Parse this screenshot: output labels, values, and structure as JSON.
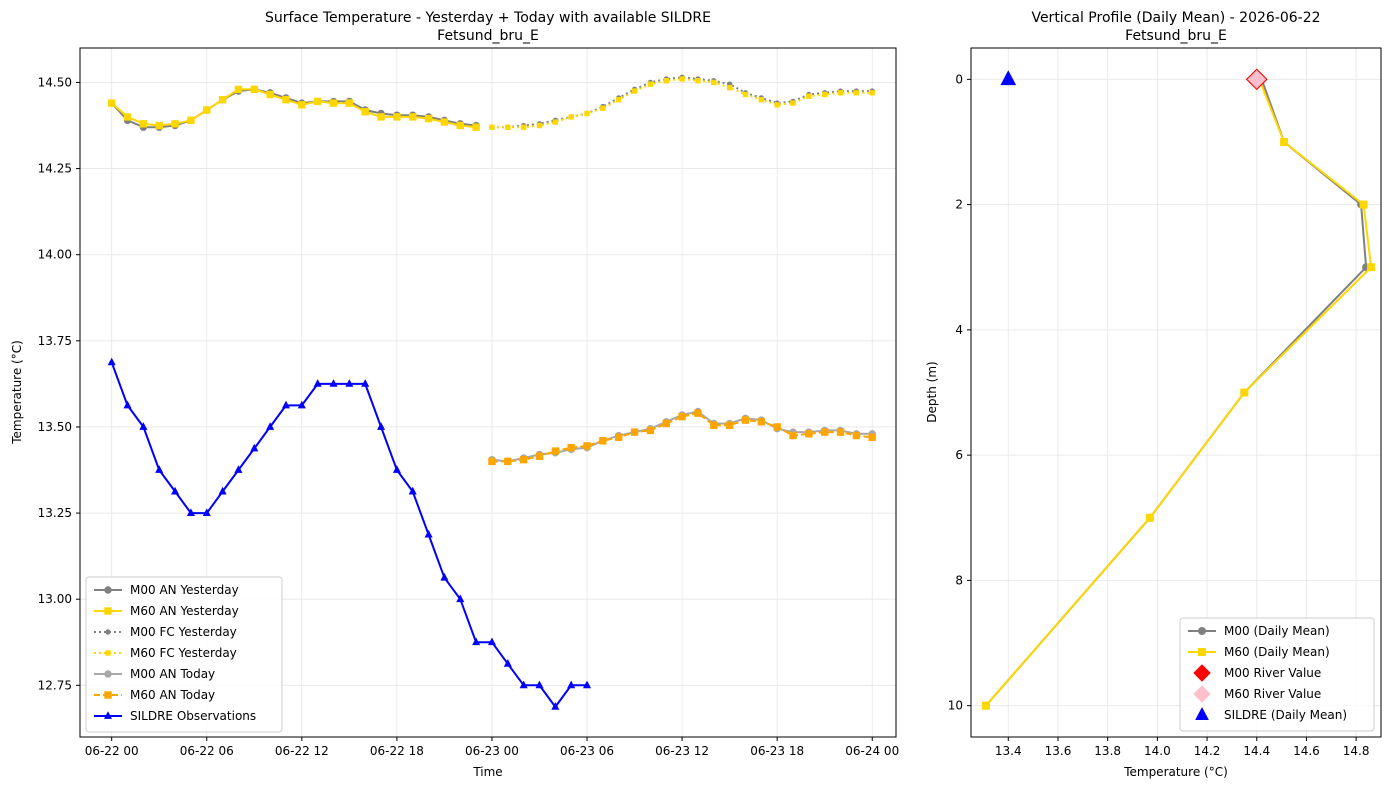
{
  "chart_data": [
    {
      "type": "line",
      "title": "Surface Temperature - Yesterday + Today with available SILDRE",
      "subtitle": "Fetsund_bru_E",
      "xlabel": "Time",
      "ylabel": "Temperature (°C)",
      "x_unit": "hours since 06-22 00:00",
      "xlim": [
        -2.0,
        49.5
      ],
      "ylim": [
        12.6,
        14.6
      ],
      "xticks": [
        {
          "value": 0,
          "label": "06-22 00"
        },
        {
          "value": 6,
          "label": "06-22 06"
        },
        {
          "value": 12,
          "label": "06-22 12"
        },
        {
          "value": 18,
          "label": "06-22 18"
        },
        {
          "value": 24,
          "label": "06-23 00"
        },
        {
          "value": 30,
          "label": "06-23 06"
        },
        {
          "value": 36,
          "label": "06-23 12"
        },
        {
          "value": 42,
          "label": "06-23 18"
        },
        {
          "value": 48,
          "label": "06-24 00"
        }
      ],
      "yticks": [
        12.75,
        13.0,
        13.25,
        13.5,
        13.75,
        14.0,
        14.25,
        14.5
      ],
      "ytick_labels": [
        "12.75",
        "13.00",
        "13.25",
        "13.50",
        "13.75",
        "14.00",
        "14.25",
        "14.50"
      ],
      "grid": true,
      "legend_position": "lower-left",
      "series": [
        {
          "name": "M00 AN Yesterday",
          "color": "#808080",
          "marker": "circle",
          "dash": "solid",
          "x": [
            0,
            1,
            2,
            3,
            4,
            5,
            6,
            7,
            8,
            9,
            10,
            11,
            12,
            13,
            14,
            15,
            16,
            17,
            18,
            19,
            20,
            21,
            22,
            23
          ],
          "y": [
            14.44,
            14.39,
            14.37,
            14.37,
            14.375,
            14.39,
            14.42,
            14.45,
            14.475,
            14.48,
            14.47,
            14.455,
            14.44,
            14.445,
            14.445,
            14.445,
            14.42,
            14.41,
            14.405,
            14.405,
            14.4,
            14.39,
            14.38,
            14.375
          ]
        },
        {
          "name": "M60 AN Yesterday",
          "color": "#FFD700",
          "marker": "square",
          "dash": "solid",
          "x": [
            0,
            1,
            2,
            3,
            4,
            5,
            6,
            7,
            8,
            9,
            10,
            11,
            12,
            13,
            14,
            15,
            16,
            17,
            18,
            19,
            20,
            21,
            22,
            23
          ],
          "y": [
            14.44,
            14.4,
            14.38,
            14.375,
            14.38,
            14.39,
            14.42,
            14.45,
            14.48,
            14.48,
            14.465,
            14.45,
            14.435,
            14.445,
            14.44,
            14.44,
            14.415,
            14.4,
            14.4,
            14.4,
            14.395,
            14.385,
            14.375,
            14.37
          ]
        },
        {
          "name": "M00 FC Yesterday",
          "color": "#808080",
          "marker": "circle",
          "dash": "dotted",
          "x": [
            24,
            25,
            26,
            27,
            28,
            29,
            30,
            31,
            32,
            33,
            34,
            35,
            36,
            37,
            38,
            39,
            40,
            41,
            42,
            43,
            44,
            45,
            46,
            47,
            48
          ],
          "y": [
            14.37,
            14.37,
            14.375,
            14.38,
            14.39,
            14.4,
            14.41,
            14.43,
            14.455,
            14.48,
            14.5,
            14.51,
            14.515,
            14.51,
            14.505,
            14.495,
            14.47,
            14.455,
            14.44,
            14.445,
            14.465,
            14.47,
            14.475,
            14.475,
            14.475
          ]
        },
        {
          "name": "M60 FC Yesterday",
          "color": "#FFD700",
          "marker": "square",
          "dash": "dotted",
          "x": [
            24,
            25,
            26,
            27,
            28,
            29,
            30,
            31,
            32,
            33,
            34,
            35,
            36,
            37,
            38,
            39,
            40,
            41,
            42,
            43,
            44,
            45,
            46,
            47,
            48
          ],
          "y": [
            14.37,
            14.37,
            14.37,
            14.375,
            14.385,
            14.4,
            14.41,
            14.425,
            14.45,
            14.475,
            14.495,
            14.505,
            14.51,
            14.505,
            14.5,
            14.485,
            14.465,
            14.45,
            14.435,
            14.44,
            14.46,
            14.465,
            14.47,
            14.47,
            14.47
          ]
        },
        {
          "name": "M00 AN Today",
          "color": "#A9A9A9",
          "marker": "circle",
          "dash": "solid",
          "x": [
            24,
            25,
            26,
            27,
            28,
            29,
            30,
            31,
            32,
            33,
            34,
            35,
            36,
            37,
            38,
            39,
            40,
            41,
            42,
            43,
            44,
            45,
            46,
            47,
            48
          ],
          "y": [
            13.405,
            13.4,
            13.41,
            13.42,
            13.425,
            13.435,
            13.44,
            13.46,
            13.475,
            13.485,
            13.495,
            13.515,
            13.535,
            13.545,
            13.51,
            13.51,
            13.525,
            13.52,
            13.495,
            13.485,
            13.485,
            13.49,
            13.49,
            13.48,
            13.48
          ]
        },
        {
          "name": "M60 AN Today",
          "color": "#FFA500",
          "marker": "square",
          "dash": "dashed",
          "x": [
            24,
            25,
            26,
            27,
            28,
            29,
            30,
            31,
            32,
            33,
            34,
            35,
            36,
            37,
            38,
            39,
            40,
            41,
            42,
            43,
            44,
            45,
            46,
            47,
            48
          ],
          "y": [
            13.4,
            13.4,
            13.405,
            13.415,
            13.43,
            13.44,
            13.445,
            13.46,
            13.47,
            13.485,
            13.49,
            13.51,
            13.53,
            13.54,
            13.505,
            13.505,
            13.52,
            13.515,
            13.5,
            13.475,
            13.48,
            13.485,
            13.485,
            13.475,
            13.47
          ]
        },
        {
          "name": "SILDRE Observations",
          "color": "#0000FF",
          "marker": "triangle",
          "dash": "solid",
          "x": [
            0,
            1,
            2,
            3,
            4,
            5,
            6,
            7,
            8,
            9,
            10,
            11,
            12,
            13,
            14,
            15,
            16,
            17,
            18,
            19,
            20,
            21,
            22,
            23,
            24,
            25,
            26,
            27,
            28,
            29,
            30
          ],
          "y": [
            13.6875,
            13.5625,
            13.5,
            13.375,
            13.3125,
            13.25,
            13.25,
            13.3125,
            13.375,
            13.4375,
            13.5,
            13.5625,
            13.5625,
            13.625,
            13.625,
            13.625,
            13.625,
            13.5,
            13.375,
            13.3125,
            13.1875,
            13.0625,
            13.0,
            12.875,
            12.875,
            12.8125,
            12.75,
            12.75,
            12.6875,
            12.75,
            12.75
          ]
        }
      ]
    },
    {
      "type": "line",
      "title": "Vertical Profile (Daily Mean) - 2026-06-22",
      "subtitle": "Fetsund_bru_E",
      "xlabel": "Temperature (°C)",
      "ylabel": "Depth (m)",
      "xlim": [
        13.25,
        14.9
      ],
      "ylim": [
        10.5,
        -0.5
      ],
      "y_inverted": true,
      "xticks": [
        13.4,
        13.6,
        13.8,
        14.0,
        14.2,
        14.4,
        14.6,
        14.8
      ],
      "xtick_labels": [
        "13.4",
        "13.6",
        "13.8",
        "14.0",
        "14.2",
        "14.4",
        "14.6",
        "14.8"
      ],
      "yticks": [
        0,
        2,
        4,
        6,
        8,
        10
      ],
      "ytick_labels": [
        "0",
        "2",
        "4",
        "6",
        "8",
        "10"
      ],
      "grid": true,
      "legend_position": "lower-right",
      "series": [
        {
          "name": "M00 (Daily Mean)",
          "color": "#808080",
          "marker": "circle",
          "temperature": [
            14.42,
            14.51,
            14.82,
            14.84,
            14.35,
            13.97,
            13.31
          ],
          "depth": [
            0,
            1,
            2,
            3,
            5,
            7,
            10
          ]
        },
        {
          "name": "M60 (Daily Mean)",
          "color": "#FFD700",
          "marker": "square",
          "temperature": [
            14.41,
            14.51,
            14.83,
            14.86,
            14.35,
            13.97,
            13.31
          ],
          "depth": [
            0,
            1,
            2,
            3,
            5,
            7,
            10
          ]
        },
        {
          "name": "M00 River Value",
          "color": "#FF0000",
          "marker": "diamond",
          "temperature": [
            14.4
          ],
          "depth": [
            0
          ]
        },
        {
          "name": "M60 River Value",
          "color": "#FFC0CB",
          "marker": "diamond",
          "temperature": [
            14.4
          ],
          "depth": [
            0
          ]
        },
        {
          "name": "SILDRE (Daily Mean)",
          "color": "#0000FF",
          "marker": "triangle",
          "temperature": [
            13.4
          ],
          "depth": [
            0
          ]
        }
      ]
    }
  ]
}
